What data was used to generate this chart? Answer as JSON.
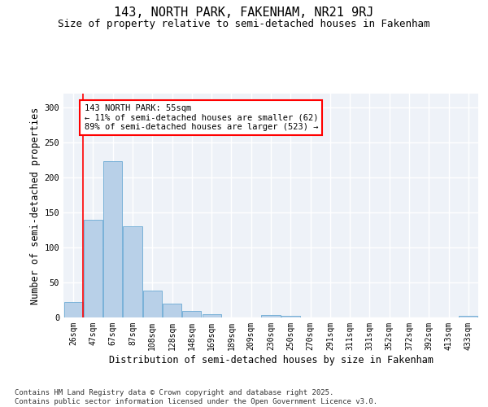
{
  "title": "143, NORTH PARK, FAKENHAM, NR21 9RJ",
  "subtitle": "Size of property relative to semi-detached houses in Fakenham",
  "xlabel": "Distribution of semi-detached houses by size in Fakenham",
  "ylabel": "Number of semi-detached properties",
  "bar_color": "#b8d0e8",
  "bar_edge_color": "#6aaad4",
  "categories": [
    "26sqm",
    "47sqm",
    "67sqm",
    "87sqm",
    "108sqm",
    "128sqm",
    "148sqm",
    "169sqm",
    "189sqm",
    "209sqm",
    "230sqm",
    "250sqm",
    "270sqm",
    "291sqm",
    "311sqm",
    "331sqm",
    "352sqm",
    "372sqm",
    "392sqm",
    "413sqm",
    "433sqm"
  ],
  "values": [
    22,
    140,
    224,
    130,
    38,
    20,
    9,
    5,
    0,
    0,
    3,
    2,
    0,
    0,
    0,
    0,
    0,
    0,
    0,
    0,
    2
  ],
  "ylim": [
    0,
    320
  ],
  "yticks": [
    0,
    50,
    100,
    150,
    200,
    250,
    300
  ],
  "property_size_label": "143 NORTH PARK: 55sqm",
  "pct_smaller": 11,
  "pct_larger": 89,
  "count_smaller": 62,
  "count_larger": 523,
  "red_line_x": 0.5,
  "footer_line1": "Contains HM Land Registry data © Crown copyright and database right 2025.",
  "footer_line2": "Contains public sector information licensed under the Open Government Licence v3.0.",
  "background_color": "#eef2f8",
  "grid_color": "#ffffff",
  "title_fontsize": 11,
  "subtitle_fontsize": 9,
  "axis_label_fontsize": 8.5,
  "tick_fontsize": 7,
  "footer_fontsize": 6.5,
  "annot_fontsize": 7.5
}
